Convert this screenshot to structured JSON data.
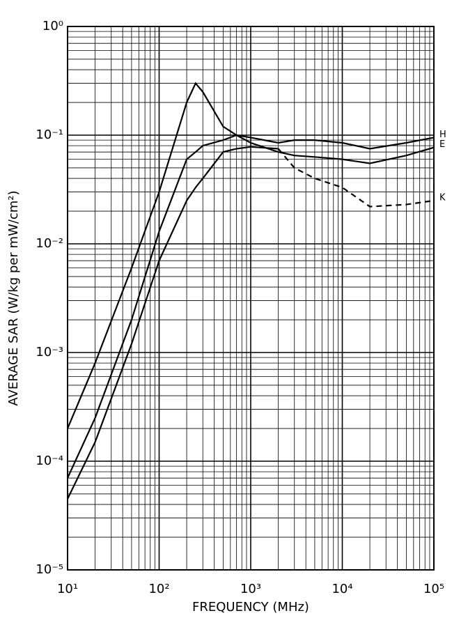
{
  "chart_data": {
    "type": "line",
    "xlabel": "FREQUENCY (MHz)",
    "ylabel": "AVERAGE SAR   (W/kg per mW/cm²)",
    "x": [
      10,
      20,
      50,
      100,
      200,
      250,
      300,
      500,
      700,
      1000,
      2000,
      3000,
      5000,
      10000,
      20000,
      50000,
      100000
    ],
    "series": [
      {
        "name": "H",
        "color": "#000000",
        "values": [
          7e-05,
          0.00025,
          0.002,
          0.013,
          0.06,
          0.07,
          0.08,
          0.09,
          0.1,
          0.095,
          0.085,
          0.09,
          0.09,
          0.085,
          0.075,
          0.085,
          0.095
        ]
      },
      {
        "name": "E",
        "color": "#000000",
        "values": [
          0.0002,
          0.0008,
          0.006,
          0.03,
          0.2,
          0.3,
          0.25,
          0.12,
          0.1,
          0.085,
          0.07,
          0.065,
          0.063,
          0.06,
          0.055,
          0.065,
          0.077
        ]
      },
      {
        "name": "K",
        "color": "#000000",
        "dash_start_x": 2000,
        "values": [
          4.5e-05,
          0.00015,
          0.0012,
          0.007,
          0.025,
          0.033,
          0.04,
          0.07,
          0.075,
          0.078,
          0.075,
          0.05,
          0.04,
          0.033,
          0.022,
          0.023,
          0.025
        ]
      }
    ],
    "xscale": "log",
    "yscale": "log",
    "xlim": [
      10,
      100000
    ],
    "ylim": [
      1e-05,
      1
    ],
    "xticks": [
      {
        "value": 10,
        "label": "10¹"
      },
      {
        "value": 100,
        "label": "10²"
      },
      {
        "value": 1000,
        "label": "10³"
      },
      {
        "value": 10000,
        "label": "10⁴"
      },
      {
        "value": 100000,
        "label": "10⁵"
      }
    ],
    "yticks": [
      {
        "value": 1e-05,
        "label": "10⁻⁵"
      },
      {
        "value": 0.0001,
        "label": "10⁻⁴"
      },
      {
        "value": 0.001,
        "label": "10⁻³"
      },
      {
        "value": 0.01,
        "label": "10⁻²"
      },
      {
        "value": 0.1,
        "label": "10⁻¹"
      },
      {
        "value": 1,
        "label": "10⁰"
      }
    ],
    "grid": true,
    "minor_grid": true
  }
}
